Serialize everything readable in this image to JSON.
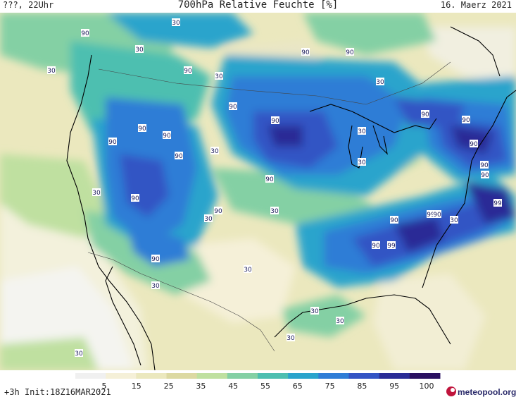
{
  "header": {
    "left": "???, 22Uhr",
    "title": "700hPa Relative Feuchte [%]",
    "date": "16. Maerz 2021"
  },
  "footer": {
    "run_info": "+3h  Init:18Z16MAR2021",
    "brand": "meteopool.org"
  },
  "legend": {
    "ticks": [
      "5",
      "15",
      "25",
      "35",
      "45",
      "55",
      "65",
      "75",
      "85",
      "95",
      "100"
    ],
    "colors": [
      "#f0f0f0",
      "#f5f0d8",
      "#ebe8be",
      "#dcd9a2",
      "#bfe0a0",
      "#84d0a4",
      "#4dbfb0",
      "#2aa4cc",
      "#2f7dd6",
      "#3354c4",
      "#2a2c96",
      "#2a1060"
    ]
  },
  "contour_labels": [
    {
      "text": "90"
    },
    {
      "text": "30"
    },
    {
      "text": "30"
    },
    {
      "text": "90"
    },
    {
      "text": "90"
    },
    {
      "text": "30"
    },
    {
      "text": "30"
    },
    {
      "text": "30"
    },
    {
      "text": "90"
    },
    {
      "text": "90"
    },
    {
      "text": "90"
    },
    {
      "text": "90"
    },
    {
      "text": "90"
    },
    {
      "text": "90"
    },
    {
      "text": "30"
    },
    {
      "text": "90"
    },
    {
      "text": "30"
    },
    {
      "text": "30"
    },
    {
      "text": "90"
    },
    {
      "text": "90"
    },
    {
      "text": "90"
    },
    {
      "text": "90"
    },
    {
      "text": "90"
    },
    {
      "text": "30"
    },
    {
      "text": "90"
    },
    {
      "text": "90"
    },
    {
      "text": "30"
    },
    {
      "text": "30"
    },
    {
      "text": "90"
    },
    {
      "text": "99"
    },
    {
      "text": "90"
    },
    {
      "text": "99"
    },
    {
      "text": "90"
    },
    {
      "text": "99"
    },
    {
      "text": "90"
    },
    {
      "text": "30"
    },
    {
      "text": "30"
    },
    {
      "text": "30"
    },
    {
      "text": "30"
    },
    {
      "text": "30"
    },
    {
      "text": "30"
    },
    {
      "text": "30"
    },
    {
      "text": "90"
    }
  ]
}
